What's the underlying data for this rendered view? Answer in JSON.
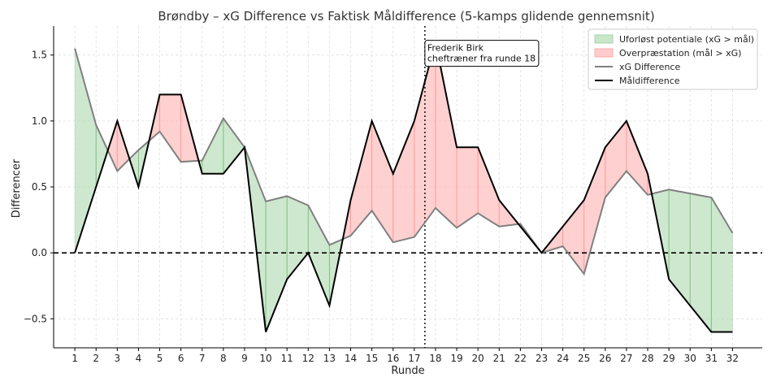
{
  "chart_data": {
    "type": "line",
    "title": "Brøndby – xG Difference vs Faktisk Måldifference (5-kamps glidende gennemsnit)",
    "xlabel": "Runde",
    "ylabel": "Differencer",
    "x": [
      1,
      2,
      3,
      4,
      5,
      6,
      7,
      8,
      9,
      10,
      11,
      12,
      13,
      14,
      15,
      16,
      17,
      18,
      19,
      20,
      21,
      22,
      23,
      24,
      25,
      26,
      27,
      28,
      29,
      30,
      31,
      32
    ],
    "xlim": [
      0,
      33.4
    ],
    "ylim": [
      -0.72,
      1.72
    ],
    "yticks": [
      -0.5,
      0.0,
      0.5,
      1.0,
      1.5
    ],
    "ytick_labels": [
      "−0.5",
      "0.0",
      "0.5",
      "1.0",
      "1.5"
    ],
    "grid": true,
    "series": [
      {
        "name": "xG Difference",
        "color": "#808080",
        "values": [
          1.55,
          0.97,
          0.62,
          0.78,
          0.92,
          0.69,
          0.7,
          1.02,
          0.8,
          0.39,
          0.43,
          0.36,
          0.06,
          0.13,
          0.32,
          0.08,
          0.12,
          0.34,
          0.19,
          0.3,
          0.2,
          0.22,
          0.0,
          0.05,
          -0.16,
          0.42,
          0.62,
          0.44,
          0.48,
          0.45,
          0.42,
          0.15
        ]
      },
      {
        "name": "Måldifference",
        "color": "#000000",
        "values": [
          0.0,
          0.5,
          1.0,
          0.5,
          1.2,
          1.2,
          0.6,
          0.6,
          0.8,
          -0.6,
          -0.2,
          0.0,
          -0.4,
          0.4,
          1.0,
          0.6,
          1.0,
          1.6,
          0.8,
          0.8,
          0.4,
          0.2,
          0.0,
          0.2,
          0.4,
          0.8,
          1.0,
          0.6,
          -0.2,
          -0.4,
          -0.6,
          -0.6
        ]
      }
    ],
    "fills": [
      {
        "name": "Uforløst potentiale (xG > mål)",
        "color": "#a5d6a7"
      },
      {
        "name": "Overpræstation (mål > xG)",
        "color": "#ffaaaa"
      }
    ],
    "zero_line": {
      "y": 0,
      "style": "dashed"
    },
    "vertical_line": {
      "x": 17.5,
      "style": "dotted"
    },
    "annotation": {
      "lines": [
        "Frederik Birk",
        "cheftræner fra runde 18"
      ],
      "x": 17.5,
      "y": 1.55
    },
    "legend_position": "top-right"
  }
}
